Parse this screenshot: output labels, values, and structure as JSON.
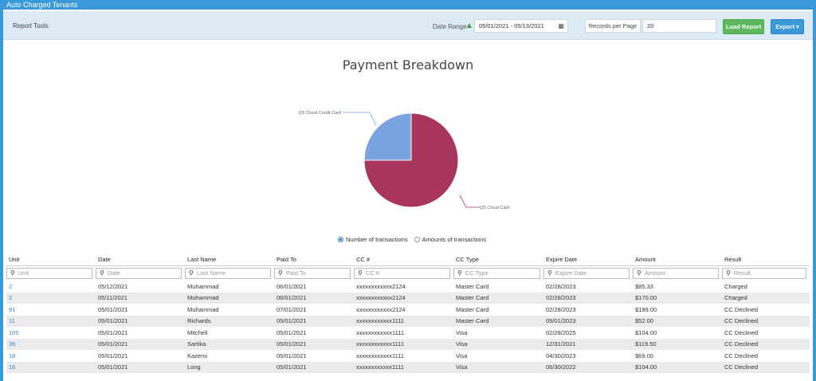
{
  "window": {
    "title": "Auto Charged Tenants"
  },
  "toolbar": {
    "report_tools": "Report Tools",
    "date_range_label": "Date Range:",
    "warning_icon": "warning-icon",
    "date_range_value": "05/01/2021 - 05/13/2021",
    "calendar_icon": "calendar-icon",
    "records_per_page_label": "Records per Page",
    "records_per_page_value": "20",
    "load_report": "Load Report",
    "export": "Export ▾",
    "colors": {
      "load": "#5cb85c",
      "export": "#3a9ad9",
      "accent": "#3a9ad9"
    }
  },
  "chart_data": {
    "type": "pie",
    "title": "Payment Breakdown",
    "slices": [
      {
        "label": "QS Cloud Cash",
        "value": 75,
        "color": "#a8365a"
      },
      {
        "label": "QS Cloud Credit Card",
        "value": 25,
        "color": "#7aa3e0"
      }
    ]
  },
  "radios": {
    "number_of_transactions": "Number of transactions",
    "amounts_of_transactions": "Amounts of transactions",
    "selected": "number_of_transactions"
  },
  "table": {
    "columns": [
      "Unit",
      "Date",
      "Last Name",
      "Paid To",
      "CC #",
      "CC Type",
      "Expire Date",
      "Amount",
      "Result"
    ],
    "filters": [
      "Unit",
      "Date",
      "Last Name",
      "Paid To",
      "CC #",
      "CC Type",
      "Expire Date",
      "Amount",
      "Result"
    ],
    "rows": [
      [
        "2",
        "05/12/2021",
        "Muhammad",
        "06/01/2021",
        "xxxxxxxxxxxx2124",
        "Master Card",
        "02/28/2023",
        "$85.33",
        "Charged"
      ],
      [
        "2",
        "05/11/2021",
        "Muhammad",
        "06/01/2021",
        "xxxxxxxxxxxx2124",
        "Master Card",
        "02/28/2023",
        "$170.00",
        "Charged"
      ],
      [
        "91",
        "05/01/2021",
        "Muhammad",
        "07/01/2021",
        "xxxxxxxxxxxx2124",
        "Master Card",
        "02/28/2023",
        "$199.00",
        "CC Declined"
      ],
      [
        "11",
        "05/01/2021",
        "Richards",
        "05/01/2021",
        "xxxxxxxxxxxx1111",
        "Master Card",
        "05/01/2023",
        "$52.00",
        "CC Declined"
      ],
      [
        "105",
        "05/01/2021",
        "Mitchell",
        "05/01/2021",
        "xxxxxxxxxxxx1111",
        "Visa",
        "02/28/2025",
        "$104.00",
        "CC Declined"
      ],
      [
        "36",
        "05/01/2021",
        "Sartika",
        "05/01/2021",
        "xxxxxxxxxxxx1111",
        "Visa",
        "12/31/2021",
        "$119.50",
        "CC Declined"
      ],
      [
        "18",
        "05/01/2021",
        "Kazemi",
        "05/01/2021",
        "xxxxxxxxxxxx1111",
        "Visa",
        "04/30/2023",
        "$69.00",
        "CC Declined"
      ],
      [
        "16",
        "05/01/2021",
        "Long",
        "05/01/2021",
        "xxxxxxxxxxxx1111",
        "Visa",
        "06/30/2022",
        "$104.00",
        "CC Declined"
      ]
    ]
  }
}
